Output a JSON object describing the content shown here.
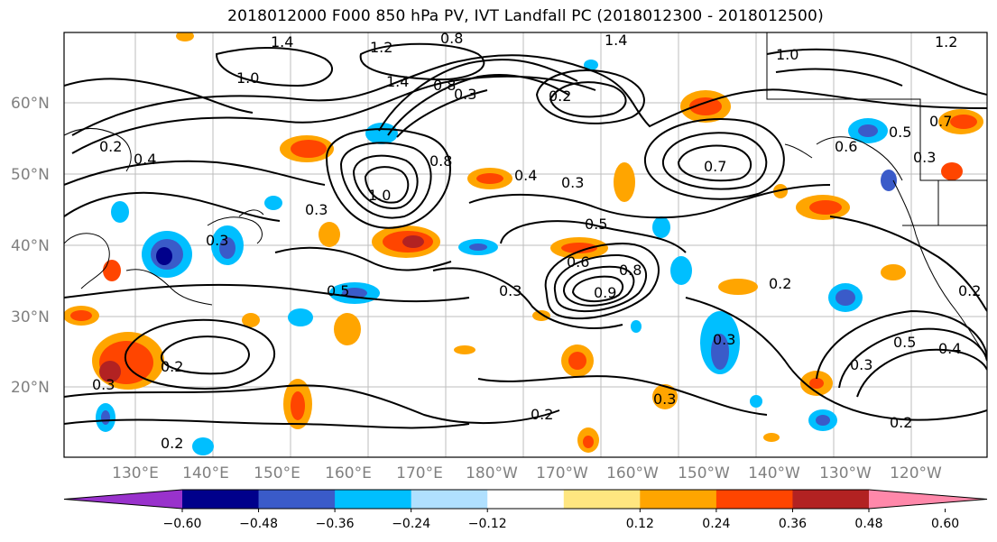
{
  "title": "2018012000 F000 850 hPa PV, IVT Landfall PC (2018012300 - 2018012500)",
  "lat_labels": [
    "60°N",
    "50°N",
    "40°N",
    "30°N",
    "20°N"
  ],
  "lon_labels": [
    "130°E",
    "140°E",
    "150°E",
    "160°E",
    "170°E",
    "180°W",
    "170°W",
    "160°W",
    "150°W",
    "140°W",
    "130°W",
    "120°W"
  ],
  "colorbar": {
    "colors": [
      "#9932CC",
      "#00008B",
      "#3A5BC9",
      "#00BFFF",
      "#B0E0FF",
      "#FFFFFF",
      "#FFE680",
      "#FFA500",
      "#FF4500",
      "#B22222",
      "#FF88AA"
    ],
    "ticks": [
      "−0.60",
      "−0.48",
      "−0.36",
      "−0.24",
      "−0.12",
      "0.12",
      "0.24",
      "0.36",
      "0.48",
      "0.60"
    ]
  },
  "contour_labels": [
    "1.4",
    "1.2",
    "1.0",
    "0.8",
    "1.4",
    "0.8",
    "0.3",
    "0.2",
    "1.2",
    "1.0",
    "1.4",
    "0.7",
    "0.5",
    "0.6",
    "0.4",
    "0.7",
    "0.3",
    "1.0",
    "0.8",
    "0.4",
    "0.3",
    "0.5",
    "0.6",
    "0.8",
    "0.9",
    "0.5",
    "0.3",
    "0.2",
    "0.3",
    "0.2",
    "0.3",
    "0.2",
    "0.3",
    "0.3",
    "0.5",
    "0.4",
    "0.2",
    "0.3",
    "0.2",
    "0.2",
    "0.2",
    "0.3"
  ]
}
